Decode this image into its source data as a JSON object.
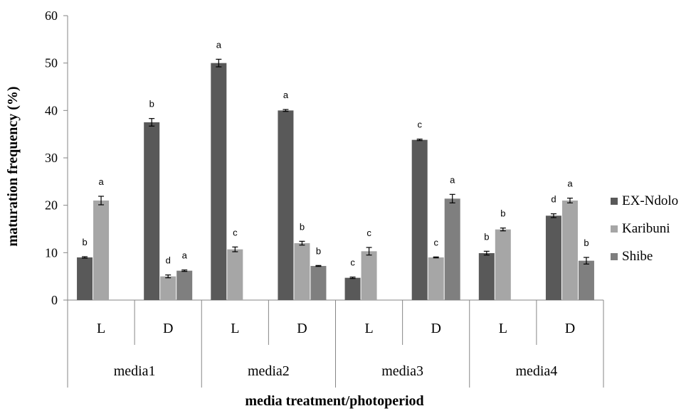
{
  "chart_data": {
    "type": "bar",
    "title": "",
    "xlabel": "media treatment/photoperiod",
    "ylabel": "maturation frequency (%)",
    "ylim": [
      0,
      60
    ],
    "yticks": [
      0,
      10,
      20,
      30,
      40,
      50,
      60
    ],
    "grid": false,
    "legend_position": "right",
    "groups": [
      "media1",
      "media2",
      "media3",
      "media4"
    ],
    "categories": [
      "L",
      "D",
      "L",
      "D",
      "L",
      "D",
      "L",
      "D"
    ],
    "series": [
      {
        "name": "EX-Ndolo",
        "color": "#595959",
        "values": [
          9.0,
          37.5,
          50.0,
          40.0,
          4.7,
          33.8,
          9.9,
          17.8
        ],
        "errors": [
          0.15,
          0.8,
          0.8,
          0.2,
          0.15,
          0.15,
          0.4,
          0.4
        ],
        "letters": [
          "b",
          "b",
          "a",
          "a",
          "c",
          "c",
          "b",
          "d"
        ]
      },
      {
        "name": "Karibuni",
        "color": "#a6a6a6",
        "values": [
          21.0,
          5.0,
          10.7,
          12.0,
          10.3,
          9.0,
          14.9,
          21.0
        ],
        "errors": [
          0.9,
          0.3,
          0.5,
          0.4,
          0.8,
          0.1,
          0.3,
          0.5
        ],
        "letters": [
          "a",
          "d",
          "c",
          "b",
          "c",
          "c",
          "b",
          "a"
        ]
      },
      {
        "name": "Shibe",
        "color": "#7f7f7f",
        "values": [
          null,
          6.2,
          null,
          7.2,
          null,
          21.4,
          null,
          8.3
        ],
        "errors": [
          null,
          0.15,
          null,
          0.1,
          null,
          0.9,
          null,
          0.7
        ],
        "letters": [
          null,
          "a",
          null,
          "b",
          null,
          "a",
          null,
          "b"
        ]
      }
    ]
  }
}
